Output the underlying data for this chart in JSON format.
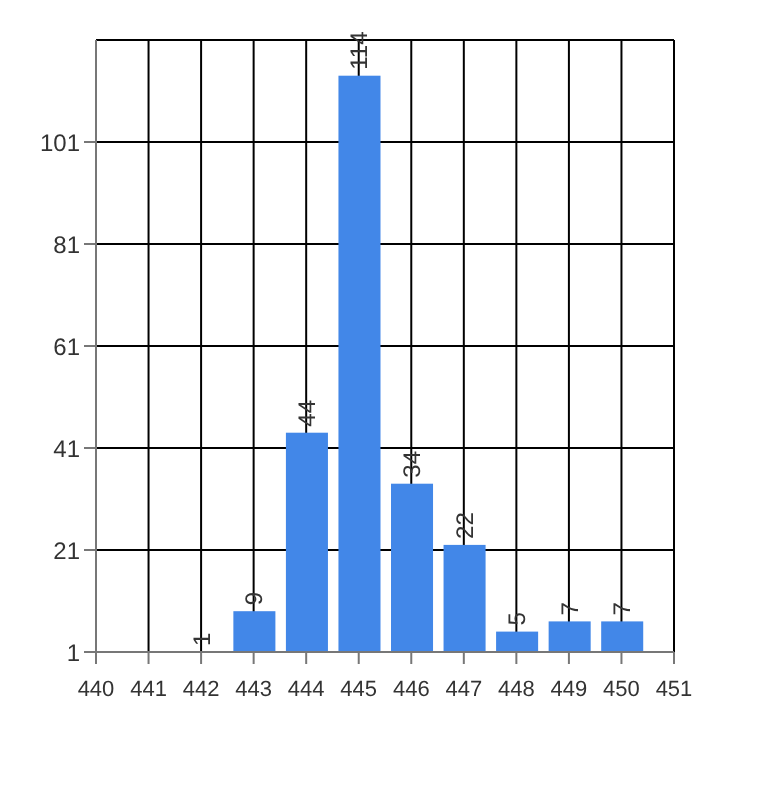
{
  "chart_data": {
    "type": "bar",
    "x": [
      442,
      443,
      444,
      445,
      446,
      447,
      448,
      449,
      450
    ],
    "values": [
      1,
      9,
      44,
      114,
      34,
      22,
      5,
      7,
      7
    ],
    "color": "#4287e8",
    "xlim": [
      440,
      451
    ],
    "xticks": [
      440,
      441,
      442,
      443,
      444,
      445,
      446,
      447,
      448,
      449,
      450,
      451
    ],
    "ylim": [
      1,
      121
    ],
    "yticks": [
      1,
      21,
      41,
      61,
      81,
      101
    ],
    "grid": true,
    "data_labels": true,
    "legend": false
  }
}
